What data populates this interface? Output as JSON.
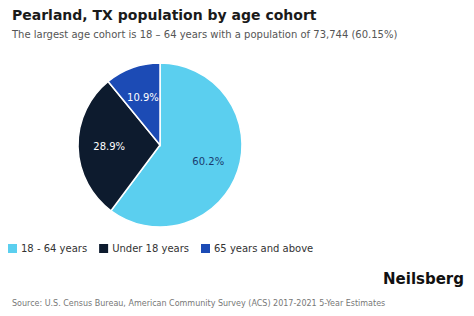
{
  "chart_data": {
    "type": "pie",
    "title": "Pearland, TX population by age cohort",
    "subtitle": "The largest age cohort is 18 – 64 years with a population of 73,744 (60.15%)",
    "categories": [
      "18 - 64 years",
      "Under 18 years",
      "65 years and above"
    ],
    "values": [
      60.2,
      28.9,
      10.9
    ],
    "value_labels": [
      "60.2%",
      "28.9%",
      "10.9%"
    ],
    "colors": [
      "#5bcfef",
      "#0d1b2e",
      "#1c4bb5"
    ],
    "data_labels": true,
    "legend": "bottom",
    "annotations": [
      "Source: U.S. Census Bureau, American Community Survey (ACS) 2017-2021 5-Year Estimates",
      "Neilsberg"
    ]
  }
}
